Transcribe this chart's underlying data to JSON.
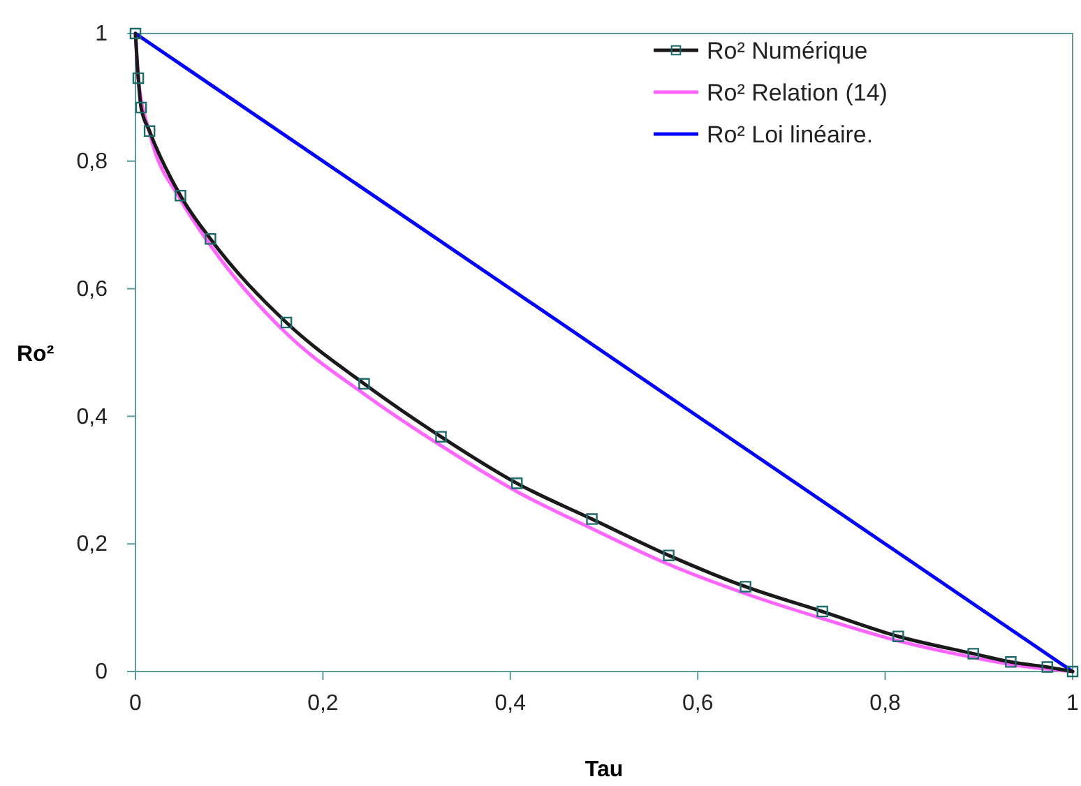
{
  "chart_data": {
    "type": "line",
    "xlabel": "Tau",
    "ylabel": "Ro²",
    "xlim": [
      0,
      1
    ],
    "ylim": [
      0,
      1
    ],
    "xticks": [
      0,
      {
        "value": 0.2,
        "label": "0,2"
      },
      {
        "value": 0.4,
        "label": "0,4"
      },
      {
        "value": 0.6,
        "label": "0,6"
      },
      {
        "value": 0.8,
        "label": "0,8"
      },
      1
    ],
    "yticks": [
      0,
      {
        "value": 0.2,
        "label": "0,2"
      },
      {
        "value": 0.4,
        "label": "0,4"
      },
      {
        "value": 0.6,
        "label": "0,6"
      },
      {
        "value": 0.8,
        "label": "0,8"
      },
      1
    ],
    "grid": false,
    "legend": "top right",
    "series": [
      {
        "name": "Ro²  Numérique",
        "color": "#1a1a1a",
        "marker": "square",
        "x": [
          0,
          0.003,
          0.006,
          0.015,
          0.048,
          0.08,
          0.161,
          0.244,
          0.326,
          0.407,
          0.487,
          0.569,
          0.651,
          0.733,
          0.814,
          0.894,
          0.934,
          0.973,
          1
        ],
        "values": [
          1,
          0.93,
          0.884,
          0.847,
          0.746,
          0.678,
          0.547,
          0.451,
          0.368,
          0.295,
          0.239,
          0.182,
          0.133,
          0.094,
          0.055,
          0.028,
          0.015,
          0.007,
          0
        ]
      },
      {
        "name": "Ro² Relation (14)",
        "color": "#ff66ff",
        "marker": "none",
        "x": [
          0,
          0.003,
          0.006,
          0.015,
          0.048,
          0.08,
          0.161,
          0.244,
          0.326,
          0.407,
          0.487,
          0.569,
          0.651,
          0.733,
          0.814,
          0.894,
          0.934,
          0.973,
          1
        ],
        "values": [
          1,
          0.93,
          null,
          0.845,
          0.74,
          0.668,
          0.53,
          0.435,
          0.354,
          0.282,
          0.224,
          0.168,
          0.122,
          0.083,
          0.048,
          0.022,
          0.011,
          0.004,
          0
        ]
      },
      {
        "name": "Ro² Loi linéaire.",
        "color": "#0000ff",
        "marker": "none",
        "x": [
          0,
          1
        ],
        "values": [
          1,
          0
        ]
      }
    ]
  }
}
